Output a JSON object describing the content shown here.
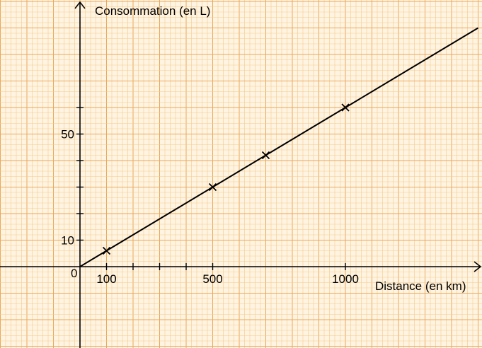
{
  "chart_data": {
    "type": "line",
    "ylabel": "Consommation (en L)",
    "xlabel": "Distance (en km)",
    "origin_label": "0",
    "x_ticks": [
      {
        "value": 100,
        "label": "100"
      },
      {
        "value": 500,
        "label": "500"
      },
      {
        "value": 1000,
        "label": "1000"
      }
    ],
    "x_minor_ticks": [
      200,
      300,
      400
    ],
    "y_ticks": [
      {
        "value": 10,
        "label": "10"
      },
      {
        "value": 50,
        "label": "50"
      }
    ],
    "y_minor_ticks": [
      20,
      30,
      40,
      60
    ],
    "x_range": [
      -300,
      1500
    ],
    "y_range": [
      -30,
      95
    ],
    "grid": true,
    "series": [
      {
        "line": {
          "x": [
            0,
            1500
          ],
          "y": [
            0,
            90
          ]
        },
        "marked_points": {
          "x": [
            100,
            500,
            700,
            1000
          ],
          "y": [
            6,
            30,
            42,
            60
          ]
        }
      }
    ],
    "colors": {
      "grid_minor": "#f4c98a",
      "grid_major": "#e8a95a",
      "background": "#fff4e2",
      "axis": "#000000"
    }
  }
}
